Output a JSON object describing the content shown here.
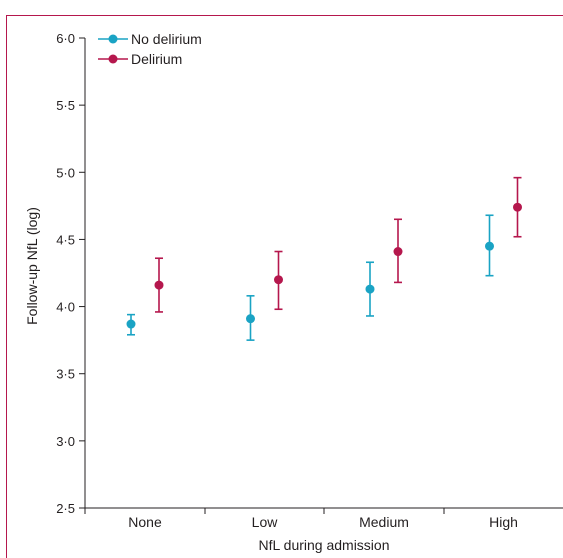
{
  "chart_data": {
    "type": "scatter",
    "subtype": "point-with-error-bars",
    "xlabel": "NfL during admission",
    "ylabel": "Follow-up NfL (log)",
    "categories": [
      "None",
      "Low",
      "Medium",
      "High"
    ],
    "ylim": [
      2.5,
      6.0
    ],
    "yticks": [
      2.5,
      3.0,
      3.5,
      4.0,
      4.5,
      5.0,
      5.5,
      6.0
    ],
    "ytick_labels": [
      "2·5",
      "3·0",
      "3·5",
      "4·0",
      "4·5",
      "5·0",
      "5·5",
      "6·0"
    ],
    "grid": false,
    "legend_position": "top-left",
    "series": [
      {
        "name": "No delirium",
        "color": "#1aa3c4",
        "values": [
          3.87,
          3.91,
          4.13,
          4.45
        ],
        "lower": [
          3.79,
          3.75,
          3.93,
          4.23
        ],
        "upper": [
          3.94,
          4.08,
          4.33,
          4.68
        ]
      },
      {
        "name": "Delirium",
        "color": "#b5174d",
        "values": [
          4.16,
          4.2,
          4.41,
          4.74
        ],
        "lower": [
          3.96,
          3.98,
          4.18,
          4.52
        ],
        "upper": [
          4.36,
          4.41,
          4.65,
          4.96
        ]
      }
    ]
  }
}
